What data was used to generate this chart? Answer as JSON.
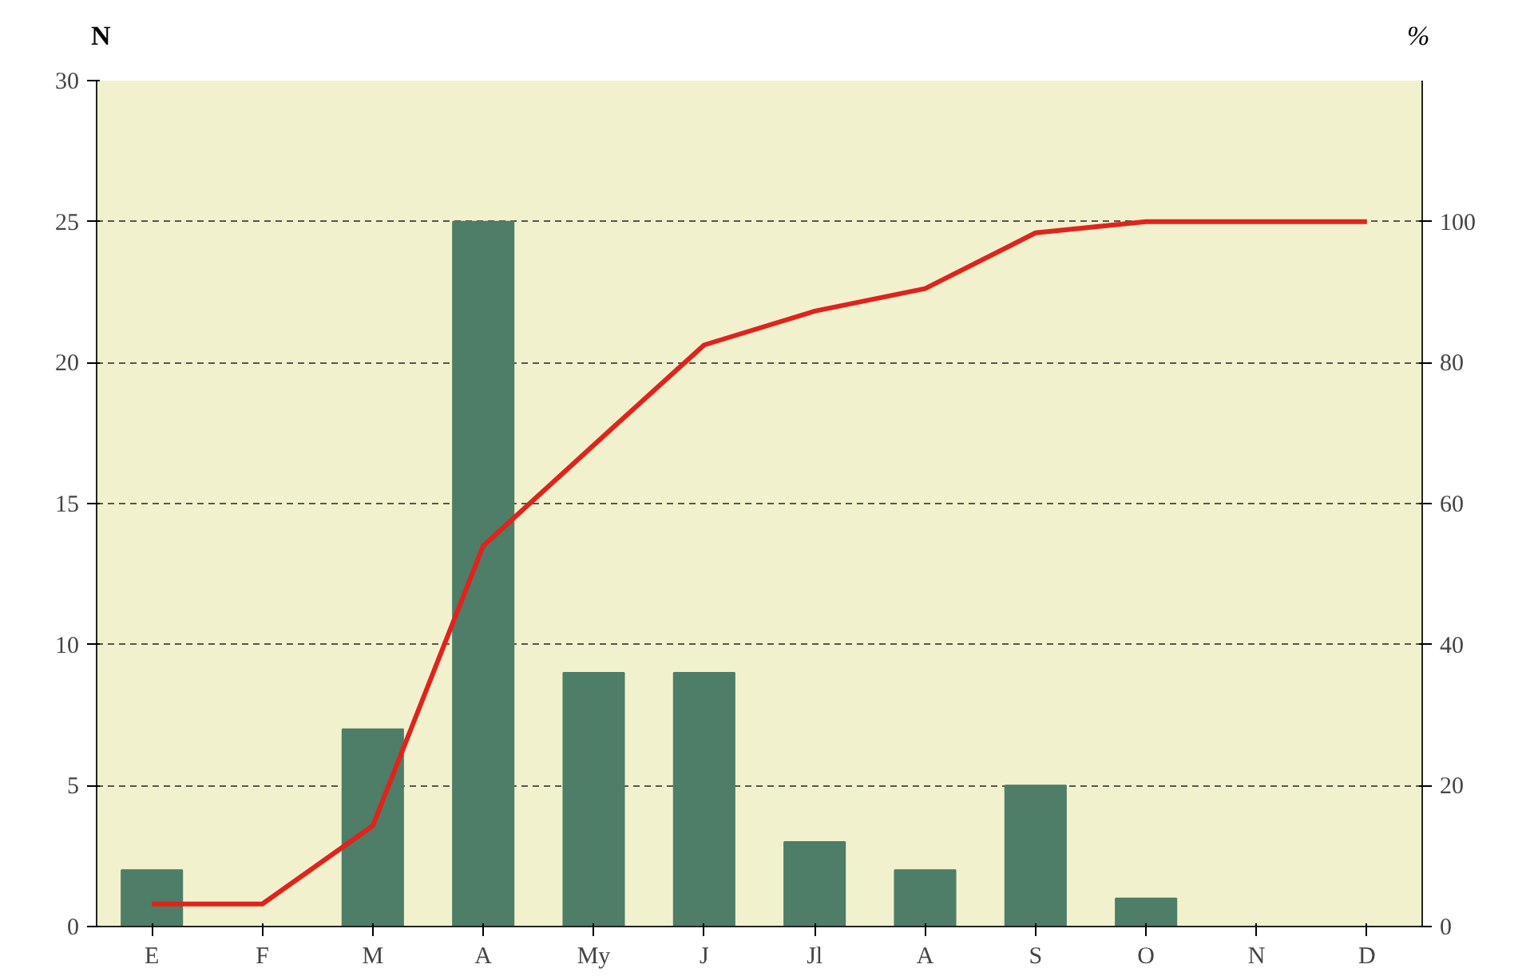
{
  "chart_data": {
    "type": "bar",
    "ylabel": "N",
    "y2label": "%",
    "categories": [
      "E",
      "F",
      "M",
      "A",
      "My",
      "J",
      "Jl",
      "A",
      "S",
      "O",
      "N",
      "D"
    ],
    "series": [
      {
        "color": "#4e7d68",
        "values": [
          2,
          0,
          7,
          25,
          9,
          9,
          3,
          2,
          5,
          1,
          0,
          0
        ]
      },
      {
        "type": "line",
        "axis": "y2",
        "color": "#e0231c",
        "values": [
          3.2,
          3.2,
          14.3,
          54,
          68.3,
          82.5,
          87.3,
          90.5,
          98.4,
          100,
          100,
          100
        ]
      }
    ],
    "ylim": [
      0,
      30
    ],
    "yticks": [
      0,
      5,
      10,
      15,
      20,
      25,
      30
    ],
    "y2lim": [
      0,
      120
    ],
    "y2ticks": [
      0,
      20,
      40,
      60,
      80,
      100
    ],
    "grid": "y",
    "line_style": "solid"
  }
}
